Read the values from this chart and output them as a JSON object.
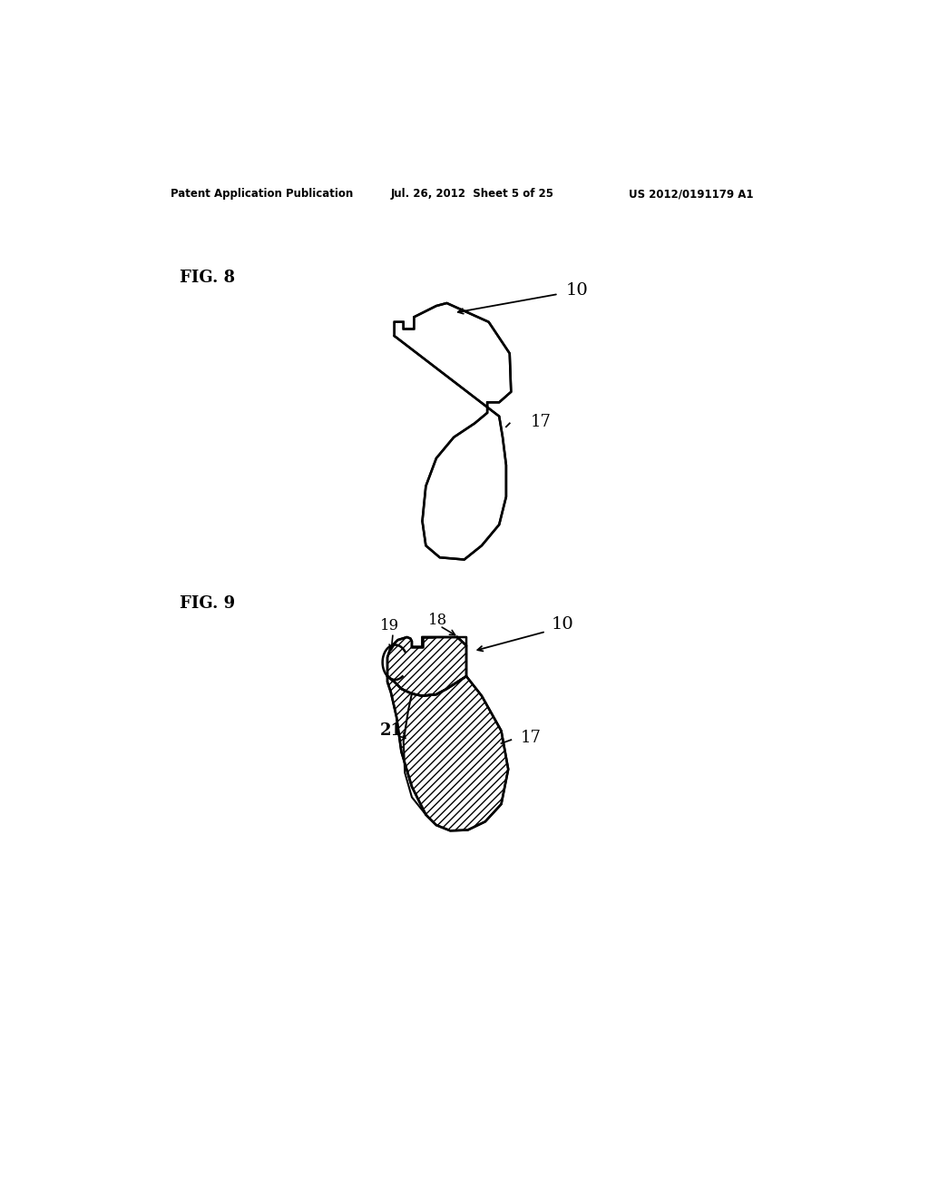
{
  "header_left": "Patent Application Publication",
  "header_mid": "Jul. 26, 2012  Sheet 5 of 25",
  "header_right": "US 2012/0191179 A1",
  "fig8_label": "FIG. 8",
  "fig9_label": "FIG. 9",
  "label_10a": "10",
  "label_17a": "17",
  "label_10b": "10",
  "label_17b": "17",
  "label_18": "18",
  "label_19": "19",
  "label_21": "21",
  "bg_color": "#ffffff",
  "line_color": "#000000"
}
